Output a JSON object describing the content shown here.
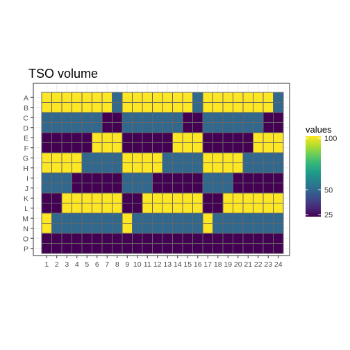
{
  "chart_data": {
    "type": "heatmap",
    "title": "TSO volume",
    "xlabel": "",
    "ylabel": "",
    "rows": [
      "A",
      "B",
      "C",
      "D",
      "E",
      "F",
      "G",
      "H",
      "I",
      "J",
      "K",
      "L",
      "M",
      "N",
      "O",
      "P"
    ],
    "columns": [
      "1",
      "2",
      "3",
      "4",
      "5",
      "6",
      "7",
      "8",
      "9",
      "10",
      "11",
      "12",
      "13",
      "14",
      "15",
      "16",
      "17",
      "18",
      "19",
      "20",
      "21",
      "22",
      "23",
      "24"
    ],
    "values": [
      [
        100,
        100,
        100,
        100,
        100,
        100,
        100,
        50,
        100,
        100,
        100,
        100,
        100,
        100,
        100,
        50,
        100,
        100,
        100,
        100,
        100,
        100,
        100,
        50
      ],
      [
        100,
        100,
        100,
        100,
        100,
        100,
        100,
        50,
        100,
        100,
        100,
        100,
        100,
        100,
        100,
        50,
        100,
        100,
        100,
        100,
        100,
        100,
        100,
        50
      ],
      [
        50,
        50,
        50,
        50,
        50,
        50,
        25,
        25,
        50,
        50,
        50,
        50,
        50,
        50,
        25,
        25,
        50,
        50,
        50,
        50,
        50,
        50,
        25,
        25
      ],
      [
        50,
        50,
        50,
        50,
        50,
        50,
        25,
        25,
        50,
        50,
        50,
        50,
        50,
        50,
        25,
        25,
        50,
        50,
        50,
        50,
        50,
        50,
        25,
        25
      ],
      [
        25,
        25,
        25,
        25,
        25,
        100,
        100,
        100,
        25,
        25,
        25,
        25,
        25,
        100,
        100,
        100,
        25,
        25,
        25,
        25,
        25,
        100,
        100,
        100
      ],
      [
        25,
        25,
        25,
        25,
        25,
        100,
        100,
        100,
        25,
        25,
        25,
        25,
        25,
        100,
        100,
        100,
        25,
        25,
        25,
        25,
        25,
        100,
        100,
        100
      ],
      [
        100,
        100,
        100,
        100,
        50,
        50,
        50,
        50,
        100,
        100,
        100,
        100,
        50,
        50,
        50,
        50,
        100,
        100,
        100,
        100,
        50,
        50,
        50,
        50
      ],
      [
        100,
        100,
        100,
        100,
        50,
        50,
        50,
        50,
        100,
        100,
        100,
        100,
        50,
        50,
        50,
        50,
        100,
        100,
        100,
        100,
        50,
        50,
        50,
        50
      ],
      [
        50,
        50,
        50,
        25,
        25,
        25,
        25,
        25,
        50,
        50,
        50,
        25,
        25,
        25,
        25,
        25,
        50,
        50,
        50,
        25,
        25,
        25,
        25,
        25
      ],
      [
        50,
        50,
        50,
        25,
        25,
        25,
        25,
        25,
        50,
        50,
        50,
        25,
        25,
        25,
        25,
        25,
        50,
        50,
        50,
        25,
        25,
        25,
        25,
        25
      ],
      [
        25,
        25,
        100,
        100,
        100,
        100,
        100,
        100,
        25,
        25,
        100,
        100,
        100,
        100,
        100,
        100,
        25,
        25,
        100,
        100,
        100,
        100,
        100,
        100
      ],
      [
        25,
        25,
        100,
        100,
        100,
        100,
        100,
        100,
        25,
        25,
        100,
        100,
        100,
        100,
        100,
        100,
        25,
        25,
        100,
        100,
        100,
        100,
        100,
        100
      ],
      [
        100,
        50,
        50,
        50,
        50,
        50,
        50,
        50,
        100,
        50,
        50,
        50,
        50,
        50,
        50,
        50,
        100,
        50,
        50,
        50,
        50,
        50,
        50,
        50
      ],
      [
        100,
        50,
        50,
        50,
        50,
        50,
        50,
        50,
        100,
        50,
        50,
        50,
        50,
        50,
        50,
        50,
        100,
        50,
        50,
        50,
        50,
        50,
        50,
        50
      ],
      [
        25,
        25,
        25,
        25,
        25,
        25,
        25,
        25,
        25,
        25,
        25,
        25,
        25,
        25,
        25,
        25,
        25,
        25,
        25,
        25,
        25,
        25,
        25,
        25
      ],
      [
        25,
        25,
        25,
        25,
        25,
        25,
        25,
        25,
        25,
        25,
        25,
        25,
        25,
        25,
        25,
        25,
        25,
        25,
        25,
        25,
        25,
        25,
        25,
        25
      ]
    ],
    "colors": {
      "25": "#440154",
      "50": "#31688e",
      "100": "#fde725"
    },
    "legend": {
      "title": "values",
      "position": "right",
      "ticks": [
        25,
        50,
        100
      ],
      "range": [
        25,
        100
      ],
      "gradient": [
        "#440154",
        "#482878",
        "#3e4989",
        "#31688e",
        "#26828e",
        "#1f9e89",
        "#35b779",
        "#6ece58",
        "#b5de2b",
        "#fde725"
      ]
    },
    "grid": true
  }
}
